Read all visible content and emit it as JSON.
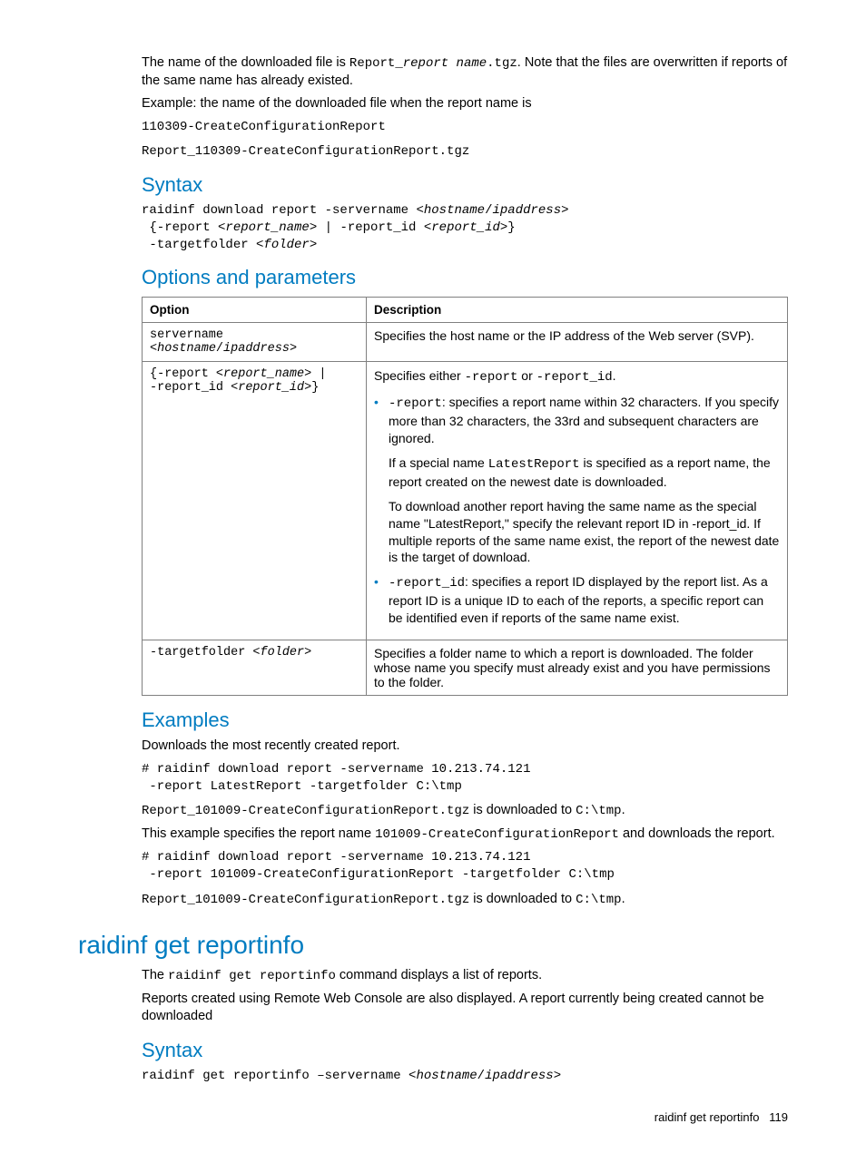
{
  "intro": {
    "p1_a": "The name of the downloaded file is ",
    "p1_code1": "Report_",
    "p1_code2_italic": "report name",
    "p1_code3": ".tgz",
    "p1_b": ". Note that the files are overwritten if reports of the same name has already existed.",
    "p2": "Example: the name of the downloaded file when the report name is",
    "p2_code": "110309-CreateConfigurationReport",
    "p3_code": "Report_110309-CreateConfigurationReport.tgz"
  },
  "syntax1": {
    "heading": "Syntax",
    "line1a": "raidinf download report -servername <",
    "line1b_italic": "hostname",
    "line1c": "/",
    "line1d_italic": "ipaddress",
    "line1e": ">",
    "line2a": " {-report <",
    "line2b_italic": "report_name",
    "line2c": "> | -report_id <",
    "line2d_italic": "report_id",
    "line2e": ">}",
    "line3a": " -targetfolder <",
    "line3b_italic": "folder",
    "line3c": ">"
  },
  "options": {
    "heading": "Options and parameters",
    "th_option": "Option",
    "th_desc": "Description",
    "row1": {
      "opt_l1": "servername",
      "opt_l2a": "<",
      "opt_l2b_italic": "hostname",
      "opt_l2c": "/",
      "opt_l2d_italic": "ipaddress",
      "opt_l2e": ">",
      "desc": "Specifies the host name or the IP address of the Web server (SVP)."
    },
    "row2": {
      "opt_l1a": "{-report <",
      "opt_l1b_italic": "report_name",
      "opt_l1c": "> |",
      "opt_l2a": "-report_id <",
      "opt_l2b_italic": "report_id",
      "opt_l2c": ">}",
      "d_p1a": "Specifies either ",
      "d_p1_code1": "-report",
      "d_p1b": " or ",
      "d_p1_code2": "-report_id",
      "d_p1c": ".",
      "b1_code": "-report",
      "b1_txt": ": specifies a report name within 32 characters. If you specify more than 32 characters, the 33rd and subsequent characters are ignored.",
      "b1_p2a": "If a special name ",
      "b1_p2_code": "LatestReport",
      "b1_p2b": " is specified as a report name, the report created on the newest date is downloaded.",
      "b1_p3": "To download another report having the same name as the special name \"LatestReport,\" specify the relevant report ID in -report_id. If multiple reports of the same name exist, the report of the newest date is the target of download.",
      "b2_code": "-report_id",
      "b2_txt": ": specifies a report ID displayed by the report list. As a report ID is a unique ID to each of the reports, a specific report can be identified even if reports of the same name exist."
    },
    "row3": {
      "opt_a": "-targetfolder <",
      "opt_b_italic": "folder",
      "opt_c": ">",
      "desc": "Specifies a folder name to which a report is downloaded. The folder whose name you specify must already exist and you have permissions to the folder."
    }
  },
  "examples": {
    "heading": "Examples",
    "p1": "Downloads the most recently created report.",
    "code1": "# raidinf download report -servername 10.213.74.121\n -report LatestReport -targetfolder C:\\tmp",
    "p2_code1": "Report_101009-CreateConfigurationReport.tgz",
    "p2_mid": " is downloaded to ",
    "p2_code2": "C:\\tmp",
    "p2_end": ".",
    "p3a": "This example specifies the report name ",
    "p3_code": "101009-CreateConfigurationReport",
    "p3b": " and downloads the report.",
    "code2": "# raidinf download report -servername 10.213.74.121\n -report 101009-CreateConfigurationReport -targetfolder C:\\tmp",
    "p4_code1": "Report_101009-CreateConfigurationReport.tgz",
    "p4_mid": " is downloaded to ",
    "p4_code2": "C:\\tmp",
    "p4_end": "."
  },
  "cmd2": {
    "heading": "raidinf get reportinfo",
    "p1a": "The ",
    "p1_code": "raidinf get reportinfo",
    "p1b": " command displays a list of reports.",
    "p2": "Reports created using Remote Web Console are also displayed. A report currently being created cannot be downloaded",
    "syntax_heading": "Syntax",
    "s_a": "raidinf get reportinfo –servername <",
    "s_b_italic": "hostname",
    "s_c": "/",
    "s_d_italic": "ipaddress",
    "s_e": ">"
  },
  "footer": {
    "text": "raidinf get reportinfo",
    "page": "119"
  }
}
